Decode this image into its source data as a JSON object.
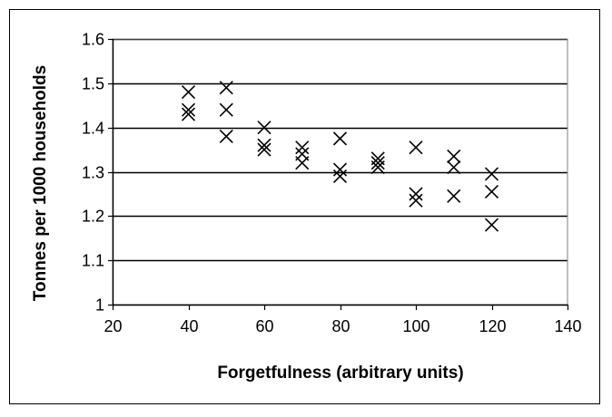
{
  "chart_data": {
    "type": "scatter",
    "title": "",
    "xlabel": "Forgetfulness (arbitrary units)",
    "ylabel": "Tonnes per 1000 households",
    "xlim": [
      20,
      140
    ],
    "ylim": [
      1.0,
      1.6
    ],
    "x_ticks": [
      20,
      40,
      60,
      80,
      100,
      120,
      140
    ],
    "y_ticks": [
      1.0,
      1.1,
      1.2,
      1.3,
      1.4,
      1.5,
      1.6
    ],
    "x_tick_labels": [
      "20",
      "40",
      "60",
      "80",
      "100",
      "120",
      "140"
    ],
    "y_tick_labels": [
      "1",
      "1.1",
      "1.2",
      "1.3",
      "1.4",
      "1.5",
      "1.6"
    ],
    "grid": {
      "horizontal": true,
      "vertical": false
    },
    "legend": "none",
    "marker": "x",
    "colors": {
      "marker": "#000000",
      "grid": "#000000",
      "plot_border": "#808080"
    },
    "series": [
      {
        "points": [
          {
            "x": 40,
            "y": 1.48
          },
          {
            "x": 40,
            "y": 1.44
          },
          {
            "x": 40,
            "y": 1.43
          },
          {
            "x": 50,
            "y": 1.49
          },
          {
            "x": 50,
            "y": 1.44
          },
          {
            "x": 50,
            "y": 1.38
          },
          {
            "x": 60,
            "y": 1.4
          },
          {
            "x": 60,
            "y": 1.36
          },
          {
            "x": 60,
            "y": 1.35
          },
          {
            "x": 70,
            "y": 1.355
          },
          {
            "x": 70,
            "y": 1.34
          },
          {
            "x": 70,
            "y": 1.32
          },
          {
            "x": 80,
            "y": 1.375
          },
          {
            "x": 80,
            "y": 1.305
          },
          {
            "x": 80,
            "y": 1.29
          },
          {
            "x": 90,
            "y": 1.33
          },
          {
            "x": 90,
            "y": 1.32
          },
          {
            "x": 90,
            "y": 1.31
          },
          {
            "x": 100,
            "y": 1.355
          },
          {
            "x": 100,
            "y": 1.25
          },
          {
            "x": 100,
            "y": 1.235
          },
          {
            "x": 110,
            "y": 1.335
          },
          {
            "x": 110,
            "y": 1.31
          },
          {
            "x": 110,
            "y": 1.245
          },
          {
            "x": 120,
            "y": 1.295
          },
          {
            "x": 120,
            "y": 1.255
          },
          {
            "x": 120,
            "y": 1.18
          }
        ]
      }
    ]
  }
}
